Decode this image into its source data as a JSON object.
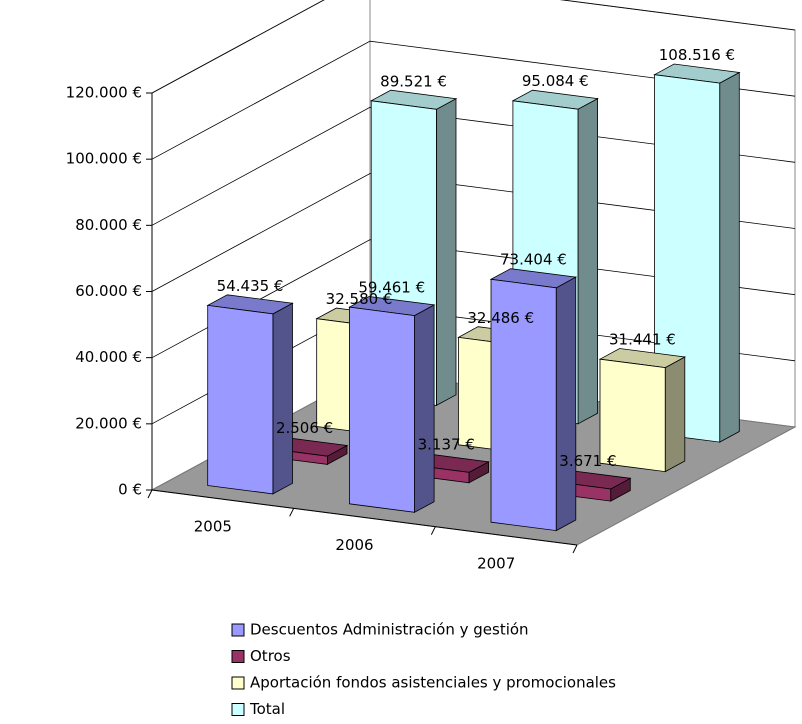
{
  "chart_data": {
    "type": "bar3d",
    "categories": [
      "2005",
      "2006",
      "2007"
    ],
    "series": [
      {
        "name": "Descuentos Administración y gestión",
        "color": "#9999ff",
        "values": [
          54435,
          59461,
          73404
        ],
        "value_labels": [
          "54.435 €",
          "59.461 €",
          "73.404 €"
        ]
      },
      {
        "name": "Otros",
        "color": "#993366",
        "values": [
          2506,
          3137,
          3671
        ],
        "value_labels": [
          "2.506 €",
          "3.137 €",
          "3.671 €"
        ]
      },
      {
        "name": "Aportación fondos asistenciales y promocionales",
        "color": "#ffffcc",
        "values": [
          32580,
          32486,
          31441
        ],
        "value_labels": [
          "32.580 €",
          "32.486 €",
          "31.441 €"
        ]
      },
      {
        "name": "Total",
        "color": "#ccffff",
        "values": [
          89521,
          95084,
          108516
        ],
        "value_labels": [
          "89.521 €",
          "95.084 €",
          "108.516 €"
        ]
      }
    ],
    "ylim": [
      0,
      120000
    ],
    "yticks": [
      {
        "value": 0,
        "label": "0 €"
      },
      {
        "value": 20000,
        "label": "20.000 €"
      },
      {
        "value": 40000,
        "label": "40.000 €"
      },
      {
        "value": 60000,
        "label": "60.000 €"
      },
      {
        "value": 80000,
        "label": "80.000 €"
      },
      {
        "value": 100000,
        "label": "100.000 €"
      },
      {
        "value": 120000,
        "label": "120.000 €"
      }
    ],
    "grid": true,
    "legend": "bottom"
  }
}
